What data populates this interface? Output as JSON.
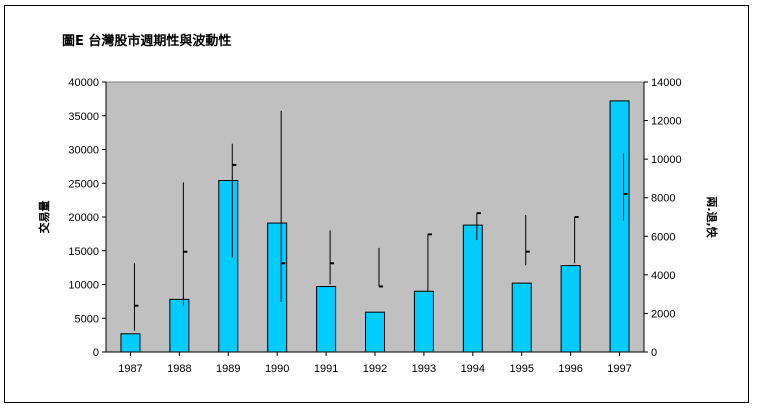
{
  "chart_data": {
    "type": "bar",
    "title": "圖E 台灣股市週期性與波動性",
    "ylabel": "交易量",
    "y2label": "兩.退,快",
    "categories": [
      "1987",
      "1988",
      "1989",
      "1990",
      "1991",
      "1992",
      "1993",
      "1994",
      "1995",
      "1996",
      "1997"
    ],
    "bar_values": [
      2700,
      7800,
      25400,
      19100,
      9700,
      5900,
      9000,
      18800,
      10200,
      12800,
      37200
    ],
    "ylim": [
      0,
      40000
    ],
    "y_ticks": [
      "0",
      "5000",
      "10000",
      "15000",
      "20000",
      "25000",
      "30000",
      "35000",
      "40000"
    ],
    "y2lim": [
      0,
      14000
    ],
    "y2_ticks": [
      "0",
      "2000",
      "4000",
      "6000",
      "8000",
      "10000",
      "12000",
      "14000"
    ],
    "hilo": [
      {
        "high": 4600,
        "low": 1100,
        "close": 2400
      },
      {
        "high": 8800,
        "low": 2400,
        "close": 5200
      },
      {
        "high": 10800,
        "low": 4900,
        "close": 9700
      },
      {
        "high": 12500,
        "low": 2600,
        "close": 4600
      },
      {
        "high": 6300,
        "low": 3500,
        "close": 4600
      },
      {
        "high": 5400,
        "low": 3400,
        "close": 3400
      },
      {
        "high": 6100,
        "low": 3100,
        "close": 6100
      },
      {
        "high": 7200,
        "low": 5800,
        "close": 7200
      },
      {
        "high": 7100,
        "low": 4500,
        "close": 5200
      },
      {
        "high": 7000,
        "low": 4600,
        "close": 7000
      },
      {
        "high": 10300,
        "low": 6800,
        "close": 8200
      }
    ],
    "colors": {
      "plot_bg": "#c0c0c0",
      "bar_fill": "#00ccff",
      "bar_stroke": "#000000",
      "line": "#000000"
    },
    "grid": false
  }
}
